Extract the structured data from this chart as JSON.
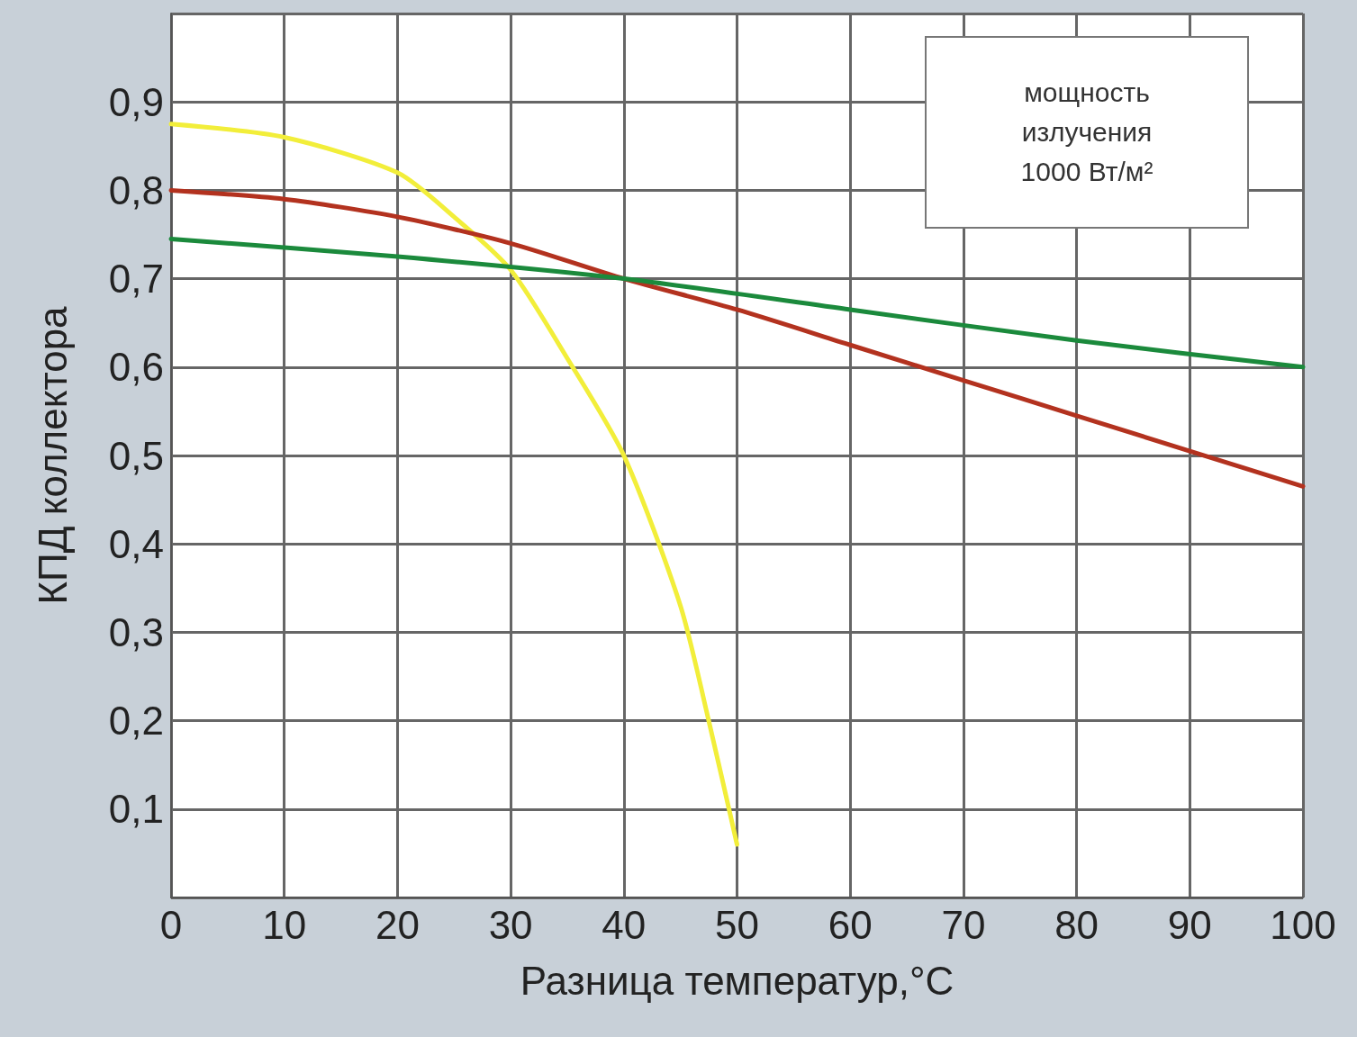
{
  "chart_data": {
    "type": "line",
    "xlabel": "Разница температур,°C",
    "ylabel": "КПД коллектора",
    "annotations": [
      "мощность излучения 1000 Вт/м²"
    ],
    "xlim": [
      0,
      100
    ],
    "xticks": [
      0,
      10,
      20,
      30,
      40,
      50,
      60,
      70,
      80,
      90,
      100
    ],
    "ylim": [
      0,
      1
    ],
    "yticks": [
      {
        "value": 0,
        "label": null
      },
      {
        "value": 0.1,
        "label": "0,1"
      },
      {
        "value": 0.2,
        "label": "0,2"
      },
      {
        "value": 0.3,
        "label": "0,3"
      },
      {
        "value": 0.4,
        "label": "0,4"
      },
      {
        "value": 0.5,
        "label": "0,5"
      },
      {
        "value": 0.6,
        "label": "0,6"
      },
      {
        "value": 0.7,
        "label": "0,7"
      },
      {
        "value": 0.8,
        "label": "0,8"
      },
      {
        "value": 0.9,
        "label": "0,9"
      },
      {
        "value": 1,
        "label": null
      }
    ],
    "grid": true,
    "marker": "none",
    "line_style": "solid",
    "series": [
      {
        "color": "#f2ee3a",
        "x": [
          0,
          10,
          20,
          25,
          30,
          35,
          40,
          45,
          47.5,
          50
        ],
        "values": [
          0.875,
          0.86,
          0.82,
          0.77,
          0.71,
          0.61,
          0.5,
          0.33,
          0.2,
          0.06
        ]
      },
      {
        "color": "#b3321f",
        "x": [
          0,
          10,
          20,
          30,
          40,
          50,
          60,
          70,
          80,
          90,
          100
        ],
        "values": [
          0.8,
          0.79,
          0.77,
          0.74,
          0.7,
          0.665,
          0.625,
          0.585,
          0.545,
          0.505,
          0.465
        ]
      },
      {
        "color": "#1b8a3c",
        "x": [
          0,
          20,
          40,
          60,
          80,
          100
        ],
        "values": [
          0.745,
          0.725,
          0.7,
          0.665,
          0.63,
          0.6
        ]
      }
    ]
  }
}
